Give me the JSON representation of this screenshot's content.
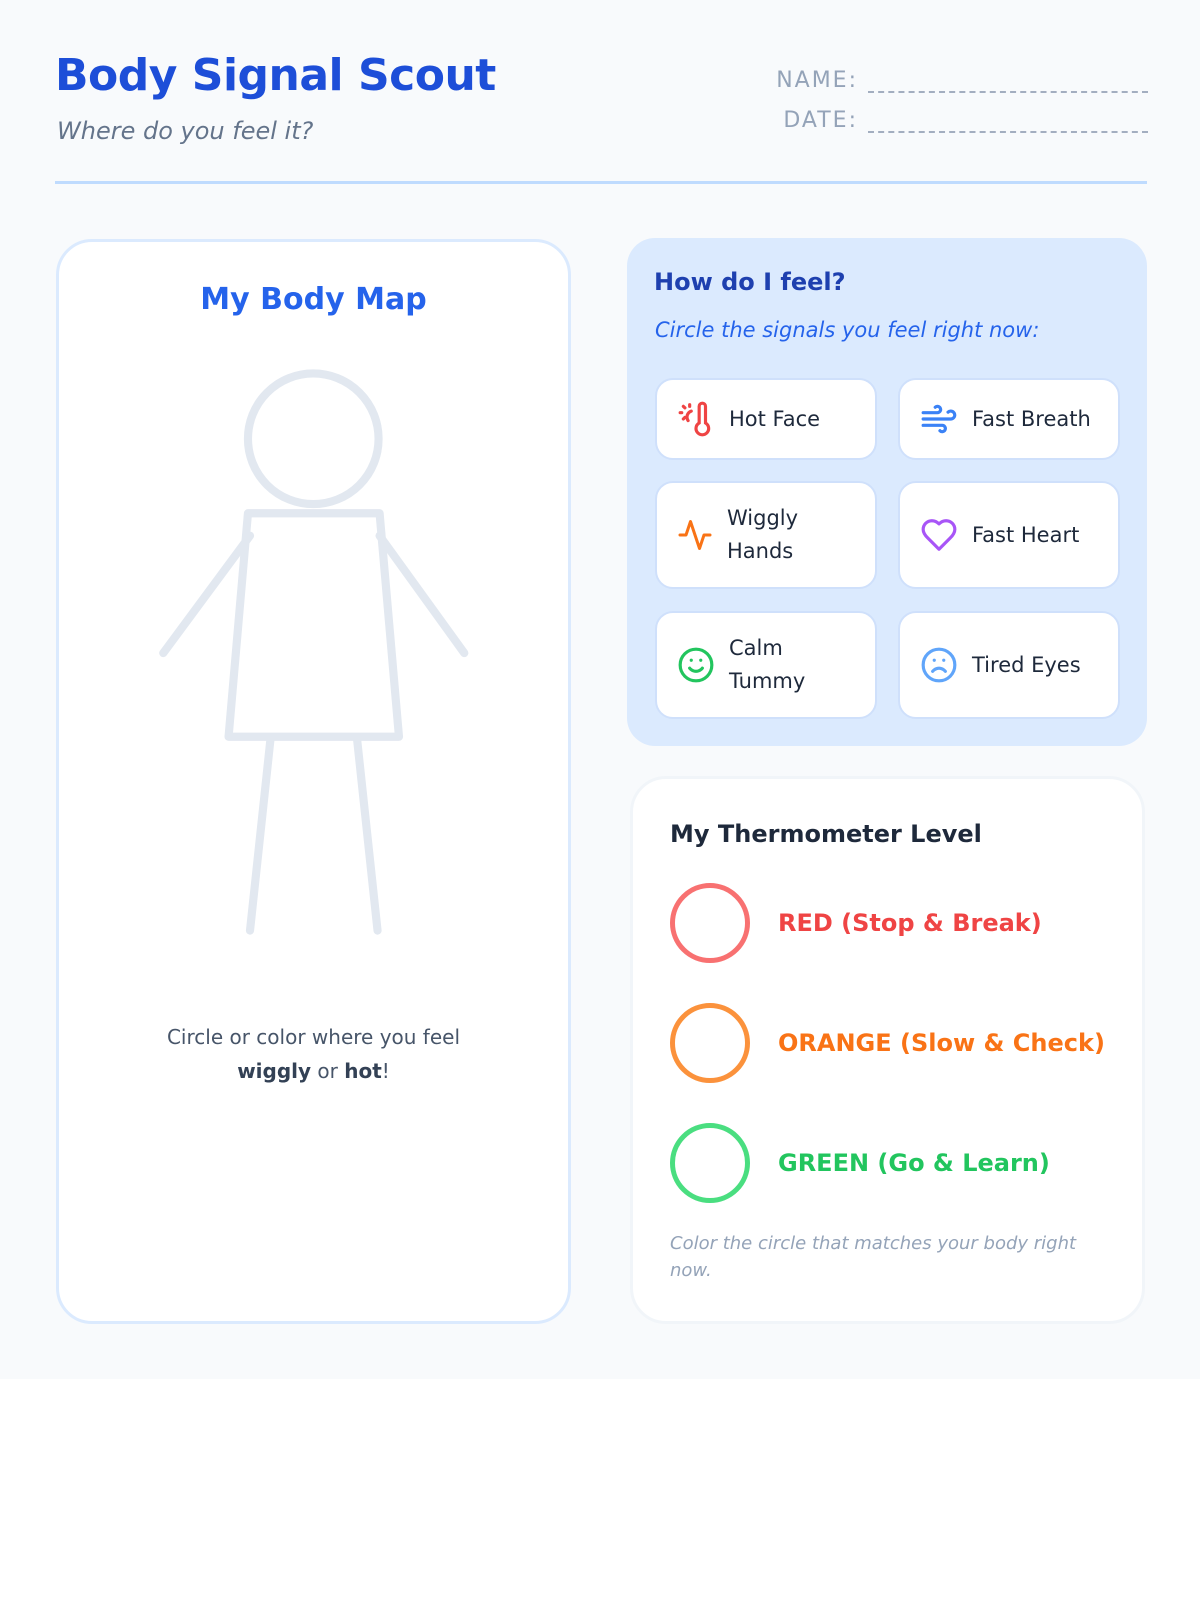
{
  "header": {
    "title": "Body Signal Scout",
    "subtitle": "Where do you feel it?",
    "name_label": "NAME:",
    "date_label": "DATE:"
  },
  "body_map": {
    "title": "My Body Map",
    "hint_prefix": "Circle or color where you feel",
    "hint_word1": "wiggly",
    "hint_or": " or ",
    "hint_word2": "hot",
    "hint_end": "!"
  },
  "feelings": {
    "title": "How do I feel?",
    "subtitle": "Circle the signals you feel right now:",
    "signals": [
      {
        "label": "Hot Face",
        "icon": "thermometer-sun-icon",
        "color": "#ef4444"
      },
      {
        "label": "Fast Breath",
        "icon": "wind-icon",
        "color": "#3b82f6"
      },
      {
        "label": "Wiggly Hands",
        "icon": "activity-icon",
        "color": "#f97316"
      },
      {
        "label": "Fast Heart",
        "icon": "heart-icon",
        "color": "#a855f7"
      },
      {
        "label": "Calm Tummy",
        "icon": "smile-icon",
        "color": "#22c55e"
      },
      {
        "label": "Tired Eyes",
        "icon": "frown-icon",
        "color": "#60a5fa"
      }
    ]
  },
  "thermometer": {
    "title": "My Thermometer Level",
    "levels": [
      {
        "label": "RED (Stop & Break)",
        "color": "#ef4444",
        "ring": "#f87171"
      },
      {
        "label": "ORANGE (Slow & Check)",
        "color": "#f97316",
        "ring": "#fb923c"
      },
      {
        "label": "GREEN (Go & Learn)",
        "color": "#22c55e",
        "ring": "#4ade80"
      }
    ],
    "note": "Color the circle that matches your body right now."
  }
}
